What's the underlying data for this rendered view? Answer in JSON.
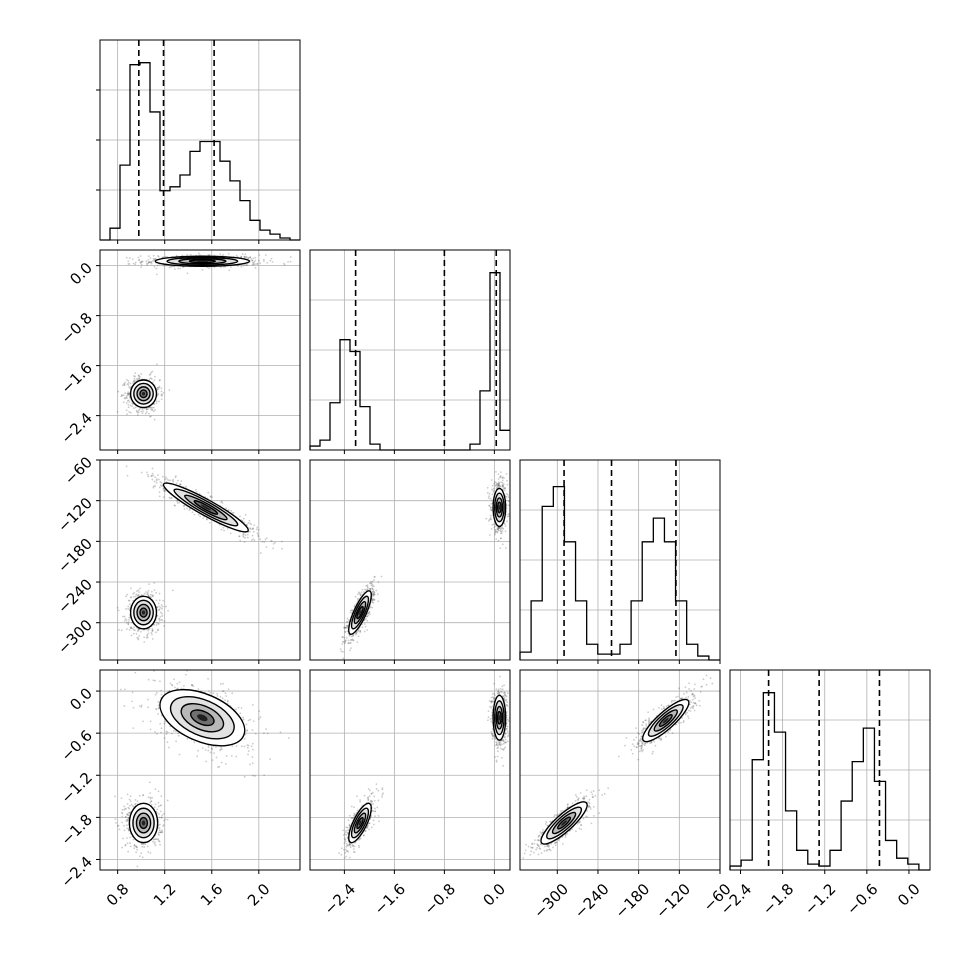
{
  "chart_data": {
    "type": "corner",
    "colors": {
      "line": "#000000",
      "grid": "#b0b0b0",
      "background": "#ffffff",
      "scatter": "#555555"
    },
    "variables": [
      {
        "range": [
          0.65,
          2.35
        ],
        "ticks": [
          0.8,
          1.2,
          1.6,
          2.0
        ],
        "tick_labels": [
          "0.8",
          "1.2",
          "1.6",
          "2.0"
        ],
        "quantiles": [
          0.98,
          1.19,
          1.62
        ]
      },
      {
        "range": [
          -2.95,
          0.25
        ],
        "ticks": [
          -2.4,
          -1.6,
          -0.8,
          0.0
        ],
        "tick_labels": [
          "−2.4",
          "−1.6",
          "−0.8",
          "0.0"
        ],
        "quantiles": [
          -2.22,
          -0.8,
          0.03
        ]
      },
      {
        "range": [
          -355,
          -60
        ],
        "ticks": [
          -300,
          -240,
          -180,
          -120,
          -60
        ],
        "tick_labels": [
          "−300",
          "−240",
          "−180",
          "−120",
          "−60"
        ],
        "quantiles": [
          -290,
          -220,
          -125
        ]
      },
      {
        "range": [
          -2.55,
          0.3
        ],
        "ticks": [
          -2.4,
          -1.8,
          -1.2,
          -0.6,
          0.0
        ],
        "tick_labels": [
          "−2.4",
          "−1.8",
          "−1.2",
          "−0.6",
          "0.0"
        ],
        "quantiles": [
          -2.0,
          -1.28,
          -0.42
        ]
      }
    ],
    "histograms": [
      {
        "variable": 0,
        "ymax": 1.0,
        "counts": [
          0.0,
          0.06,
          0.38,
          0.89,
          0.9,
          0.65,
          0.25,
          0.27,
          0.33,
          0.45,
          0.5,
          0.5,
          0.4,
          0.3,
          0.2,
          0.1,
          0.05,
          0.03,
          0.01,
          0.0
        ]
      },
      {
        "variable": 1,
        "ymax": 1.0,
        "counts": [
          0.02,
          0.05,
          0.24,
          0.56,
          0.5,
          0.22,
          0.03,
          0.0,
          0.0,
          0.0,
          0.0,
          0.0,
          0.0,
          0.0,
          0.0,
          0.0,
          0.03,
          0.3,
          0.9,
          0.1
        ]
      },
      {
        "variable": 2,
        "ymax": 1.0,
        "counts": [
          0.04,
          0.3,
          0.78,
          0.88,
          0.6,
          0.3,
          0.08,
          0.03,
          0.03,
          0.08,
          0.3,
          0.6,
          0.72,
          0.6,
          0.3,
          0.08,
          0.02,
          0.0
        ]
      },
      {
        "variable": 3,
        "ymax": 1.0,
        "counts": [
          0.02,
          0.05,
          0.56,
          0.9,
          0.7,
          0.3,
          0.1,
          0.03,
          0.02,
          0.1,
          0.35,
          0.55,
          0.72,
          0.45,
          0.15,
          0.06,
          0.03,
          0.0
        ]
      }
    ],
    "scatter_panels": [
      {
        "x": 0,
        "y": 1,
        "modes": [
          {
            "cx": 1.52,
            "cy": 0.07,
            "sx": 0.2,
            "sy": 0.04,
            "rho": 0.0
          },
          {
            "cx": 1.02,
            "cy": -2.05,
            "sx": 0.055,
            "sy": 0.11,
            "rho": 0.0
          }
        ]
      },
      {
        "x": 0,
        "y": 2,
        "modes": [
          {
            "cx": 1.55,
            "cy": -130,
            "sx": 0.18,
            "sy": 18,
            "rho": -0.93
          },
          {
            "cx": 1.02,
            "cy": -285,
            "sx": 0.055,
            "sy": 12,
            "rho": 0.0
          }
        ]
      },
      {
        "x": 1,
        "y": 2,
        "modes": [
          {
            "cx": 0.08,
            "cy": -130,
            "sx": 0.05,
            "sy": 14,
            "rho": 0.0
          },
          {
            "cx": -2.15,
            "cy": -285,
            "sx": 0.09,
            "sy": 16,
            "rho": 0.8
          }
        ]
      },
      {
        "x": 0,
        "y": 3,
        "modes": [
          {
            "cx": 1.52,
            "cy": -0.38,
            "sx": 0.18,
            "sy": 0.2,
            "rho": -0.45
          },
          {
            "cx": 1.02,
            "cy": -1.88,
            "sx": 0.06,
            "sy": 0.14,
            "rho": 0.0
          }
        ]
      },
      {
        "x": 1,
        "y": 3,
        "modes": [
          {
            "cx": 0.08,
            "cy": -0.38,
            "sx": 0.05,
            "sy": 0.16,
            "rho": 0.0
          },
          {
            "cx": -2.15,
            "cy": -1.88,
            "sx": 0.09,
            "sy": 0.14,
            "rho": 0.75
          }
        ]
      },
      {
        "x": 2,
        "y": 3,
        "modes": [
          {
            "cx": -140,
            "cy": -0.42,
            "sx": 17,
            "sy": 0.15,
            "rho": 0.85
          },
          {
            "cx": -290,
            "cy": -1.88,
            "sx": 17,
            "sy": 0.15,
            "rho": 0.85
          }
        ]
      }
    ],
    "title": "",
    "xlabel": "",
    "ylabel": "",
    "grid": true,
    "legend": "none"
  }
}
